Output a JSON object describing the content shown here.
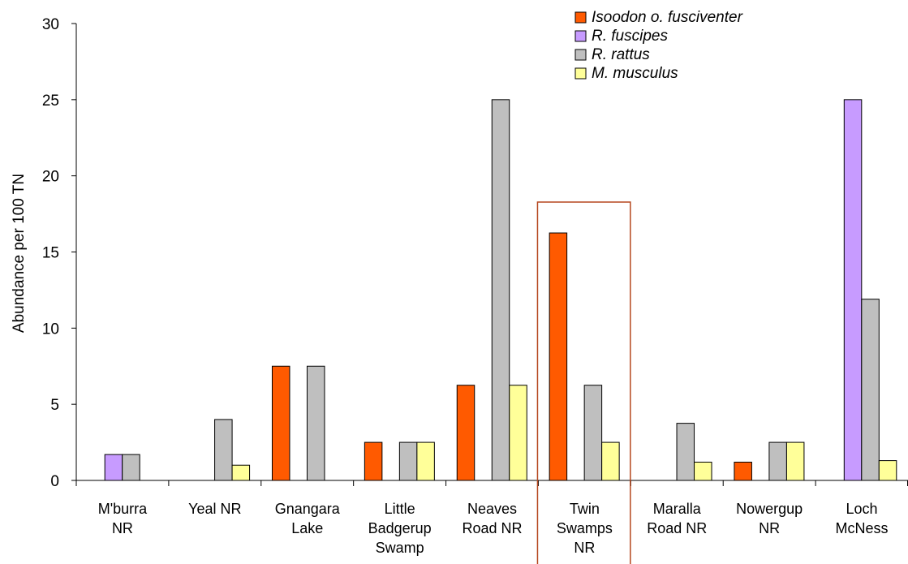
{
  "chart_data": {
    "type": "bar",
    "title": "",
    "xlabel": "",
    "ylabel": "Abundance per 100 TN",
    "ylim": [
      0,
      30
    ],
    "yticks": [
      0,
      5,
      10,
      15,
      20,
      25,
      30
    ],
    "grid": false,
    "legend_position": "top-right",
    "categories": [
      [
        "M'burra",
        "NR"
      ],
      [
        "Yeal NR"
      ],
      [
        "Gnangara",
        "Lake"
      ],
      [
        "Little",
        "Badgerup",
        "Swamp"
      ],
      [
        "Neaves",
        "Road NR"
      ],
      [
        "Twin",
        "Swamps",
        "NR"
      ],
      [
        "Maralla",
        "Road NR"
      ],
      [
        "Nowergup",
        "NR"
      ],
      [
        "Loch",
        "McNess"
      ]
    ],
    "highlighted_category_index": 5,
    "highlight_color": "#B5471E",
    "series": [
      {
        "name": "Isoodon o. fusciventer",
        "color": "#FF5A00",
        "values": [
          0,
          0,
          7.5,
          2.5,
          6.25,
          16.25,
          0,
          1.2,
          0
        ]
      },
      {
        "name": "R. fuscipes",
        "color": "#C79BFF",
        "values": [
          1.7,
          0,
          0,
          0,
          0,
          0,
          0,
          0,
          25
        ]
      },
      {
        "name": "R. rattus",
        "color": "#BFBFBF",
        "values": [
          1.7,
          4.0,
          7.5,
          2.5,
          25,
          6.25,
          3.75,
          2.5,
          11.9
        ]
      },
      {
        "name": "M. musculus",
        "color": "#FFFF99",
        "values": [
          0,
          1.0,
          0,
          2.5,
          6.25,
          2.5,
          1.2,
          2.5,
          1.3
        ]
      }
    ]
  }
}
